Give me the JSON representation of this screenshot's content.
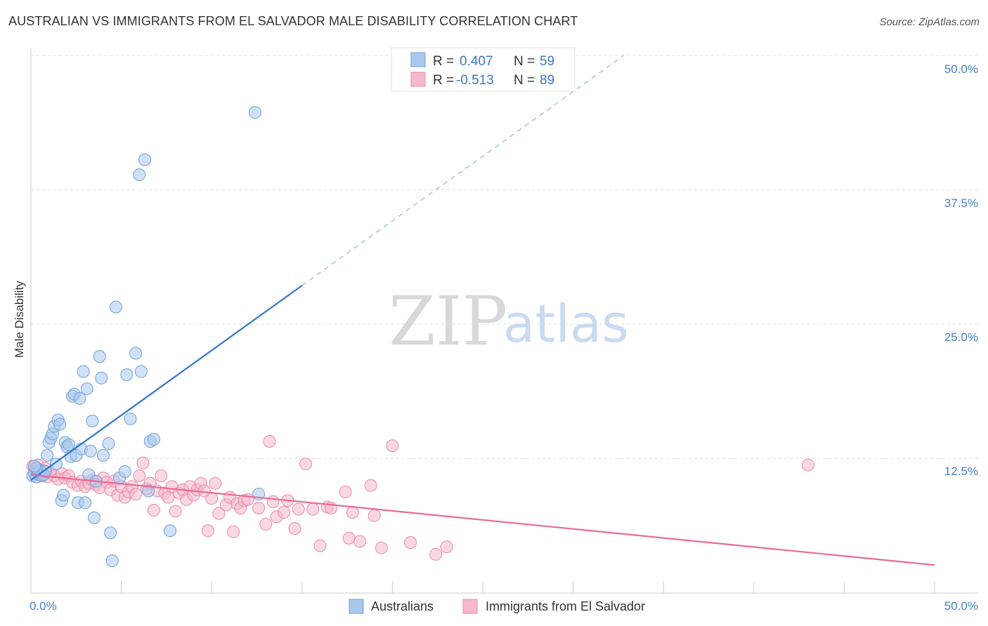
{
  "header": {
    "title": "AUSTRALIAN VS IMMIGRANTS FROM EL SALVADOR MALE DISABILITY CORRELATION CHART",
    "source": "Source: ZipAtlas.com"
  },
  "watermark": {
    "zip": "ZIP",
    "atlas": "atlas"
  },
  "legend_top": {
    "r_label": "R =",
    "n_label": "N =",
    "rows": [
      {
        "r": "0.407",
        "n": "59"
      },
      {
        "r": "-0.513",
        "n": "89"
      }
    ]
  },
  "legend_bottom": {
    "items": [
      "Australians",
      "Immigrants from El Salvador"
    ]
  },
  "colors": {
    "blue_fill": "#a9c8ee",
    "blue_stroke": "#6f9fd8",
    "blue_line": "#2f74d0",
    "pink_fill": "#f6b8cb",
    "pink_stroke": "#e98aa8",
    "pink_line": "#e86b95",
    "tick_text": "#4a7fc8",
    "grid": "#dddddd"
  },
  "chart_data": {
    "type": "scatter",
    "title": "AUSTRALIAN VS IMMIGRANTS FROM EL SALVADOR MALE DISABILITY CORRELATION CHART",
    "ylabel": "Male Disability",
    "xlabel": "",
    "xlim": [
      0,
      50
    ],
    "ylim": [
      0,
      50
    ],
    "x_tick_labels": [
      "0.0%",
      "50.0%"
    ],
    "y_ticks": [
      12.5,
      25.0,
      37.5,
      50.0
    ],
    "y_tick_labels": [
      "12.5%",
      "25.0%",
      "37.5%",
      "50.0%"
    ],
    "grid": "horizontal dashed",
    "series": [
      {
        "name": "Australians",
        "R": 0.407,
        "N": 59,
        "trend": {
          "x0": 0,
          "y0": 10.5,
          "x1": 15,
          "y1": 28.6,
          "x_dash_end": 32.8,
          "y_dash_end": 50
        },
        "points": [
          [
            0.1,
            10.9
          ],
          [
            0.2,
            11.1
          ],
          [
            0.3,
            10.8
          ],
          [
            0.4,
            11.2
          ],
          [
            0.5,
            11.4
          ],
          [
            0.6,
            10.9
          ],
          [
            0.7,
            11.0
          ],
          [
            0.8,
            11.3
          ],
          [
            0.3,
            11.6
          ],
          [
            0.2,
            11.8
          ],
          [
            0.9,
            12.8
          ],
          [
            1.0,
            14.0
          ],
          [
            1.1,
            14.4
          ],
          [
            1.2,
            14.8
          ],
          [
            1.3,
            15.5
          ],
          [
            1.4,
            12.0
          ],
          [
            1.5,
            16.1
          ],
          [
            1.6,
            15.7
          ],
          [
            1.7,
            8.6
          ],
          [
            1.8,
            9.1
          ],
          [
            1.9,
            14.0
          ],
          [
            2.0,
            13.6
          ],
          [
            2.1,
            13.8
          ],
          [
            2.2,
            12.7
          ],
          [
            2.3,
            18.3
          ],
          [
            2.4,
            18.5
          ],
          [
            2.5,
            12.8
          ],
          [
            2.6,
            8.4
          ],
          [
            2.7,
            18.1
          ],
          [
            2.8,
            13.4
          ],
          [
            2.9,
            20.6
          ],
          [
            3.0,
            8.4
          ],
          [
            3.1,
            19.0
          ],
          [
            3.2,
            11.0
          ],
          [
            3.3,
            13.2
          ],
          [
            3.4,
            16.0
          ],
          [
            3.5,
            7.0
          ],
          [
            3.6,
            10.4
          ],
          [
            3.8,
            22.0
          ],
          [
            3.9,
            20.0
          ],
          [
            4.0,
            12.8
          ],
          [
            4.3,
            13.9
          ],
          [
            4.4,
            5.6
          ],
          [
            4.5,
            3.0
          ],
          [
            4.7,
            26.6
          ],
          [
            4.9,
            10.7
          ],
          [
            5.2,
            11.3
          ],
          [
            5.3,
            20.3
          ],
          [
            5.5,
            16.2
          ],
          [
            5.8,
            22.3
          ],
          [
            6.0,
            38.9
          ],
          [
            6.1,
            20.6
          ],
          [
            6.3,
            40.3
          ],
          [
            6.5,
            9.5
          ],
          [
            6.6,
            14.1
          ],
          [
            6.8,
            14.3
          ],
          [
            7.7,
            5.8
          ],
          [
            12.4,
            44.7
          ],
          [
            12.6,
            9.2
          ]
        ]
      },
      {
        "name": "Immigrants from El Salvador",
        "R": -0.513,
        "N": 89,
        "trend": {
          "x0": 0,
          "y0": 11.0,
          "x1": 50,
          "y1": 2.6
        },
        "points": [
          [
            0.1,
            11.8
          ],
          [
            0.2,
            11.5
          ],
          [
            0.3,
            11.2
          ],
          [
            0.4,
            11.9
          ],
          [
            0.5,
            11.0
          ],
          [
            0.6,
            10.9
          ],
          [
            0.7,
            11.4
          ],
          [
            0.8,
            11.6
          ],
          [
            0.9,
            10.8
          ],
          [
            1.1,
            11.2
          ],
          [
            1.3,
            10.9
          ],
          [
            1.5,
            10.6
          ],
          [
            1.7,
            11.1
          ],
          [
            1.9,
            10.7
          ],
          [
            2.1,
            10.9
          ],
          [
            2.3,
            10.3
          ],
          [
            2.6,
            10.0
          ],
          [
            2.8,
            10.4
          ],
          [
            3.0,
            9.9
          ],
          [
            3.2,
            10.2
          ],
          [
            3.4,
            10.5
          ],
          [
            3.6,
            10.1
          ],
          [
            3.8,
            9.8
          ],
          [
            4.0,
            10.7
          ],
          [
            4.2,
            10.3
          ],
          [
            4.4,
            9.6
          ],
          [
            4.6,
            10.4
          ],
          [
            4.8,
            9.1
          ],
          [
            5.0,
            9.9
          ],
          [
            5.2,
            8.9
          ],
          [
            5.4,
            9.4
          ],
          [
            5.6,
            9.9
          ],
          [
            5.8,
            9.2
          ],
          [
            6.0,
            10.9
          ],
          [
            6.2,
            12.1
          ],
          [
            6.4,
            9.7
          ],
          [
            6.6,
            10.2
          ],
          [
            6.8,
            7.7
          ],
          [
            7.0,
            9.5
          ],
          [
            7.2,
            10.9
          ],
          [
            7.4,
            9.3
          ],
          [
            7.6,
            8.9
          ],
          [
            7.8,
            9.9
          ],
          [
            8.0,
            7.6
          ],
          [
            8.2,
            9.3
          ],
          [
            8.4,
            9.6
          ],
          [
            8.6,
            8.7
          ],
          [
            8.8,
            9.9
          ],
          [
            9.0,
            9.1
          ],
          [
            9.2,
            9.6
          ],
          [
            9.4,
            10.2
          ],
          [
            9.6,
            9.5
          ],
          [
            9.8,
            5.8
          ],
          [
            10.0,
            8.8
          ],
          [
            10.2,
            10.2
          ],
          [
            10.4,
            7.4
          ],
          [
            10.8,
            8.2
          ],
          [
            11.0,
            8.9
          ],
          [
            11.2,
            5.7
          ],
          [
            11.4,
            8.3
          ],
          [
            11.6,
            7.9
          ],
          [
            11.8,
            8.6
          ],
          [
            12.0,
            8.7
          ],
          [
            12.6,
            7.9
          ],
          [
            13.0,
            6.4
          ],
          [
            13.2,
            14.1
          ],
          [
            13.4,
            8.5
          ],
          [
            13.6,
            7.1
          ],
          [
            14.0,
            7.5
          ],
          [
            14.2,
            8.6
          ],
          [
            14.6,
            6.0
          ],
          [
            14.8,
            7.8
          ],
          [
            15.2,
            12.0
          ],
          [
            15.6,
            7.8
          ],
          [
            16.0,
            4.4
          ],
          [
            16.4,
            8.0
          ],
          [
            16.6,
            7.9
          ],
          [
            17.4,
            9.4
          ],
          [
            17.6,
            5.1
          ],
          [
            17.8,
            7.5
          ],
          [
            18.2,
            4.8
          ],
          [
            18.8,
            10.0
          ],
          [
            19.0,
            7.2
          ],
          [
            19.4,
            4.2
          ],
          [
            20.0,
            13.7
          ],
          [
            21.0,
            4.7
          ],
          [
            22.4,
            3.6
          ],
          [
            23.0,
            4.3
          ],
          [
            43.0,
            11.9
          ]
        ]
      }
    ]
  }
}
